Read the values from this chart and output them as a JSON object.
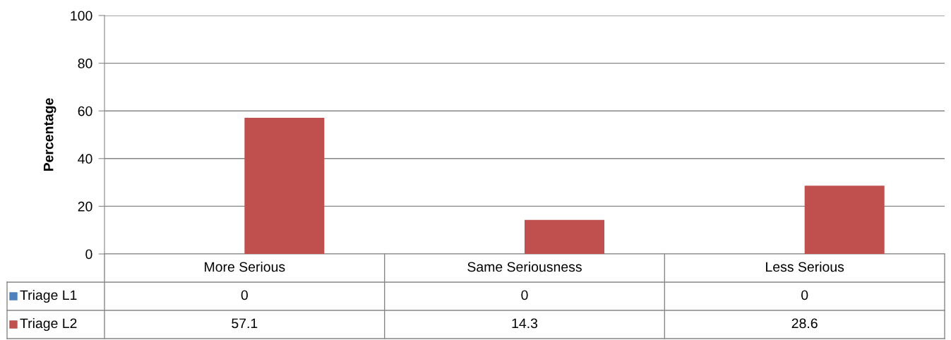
{
  "chart_data": {
    "type": "bar",
    "ylabel": "Percentage",
    "categories": [
      "More Serious",
      "Same Seriousness",
      "Less Serious"
    ],
    "series": [
      {
        "name": "Triage L1",
        "color": "#4f81bd",
        "values": [
          0,
          0,
          0
        ]
      },
      {
        "name": "Triage L2",
        "color": "#c0504d",
        "values": [
          57.1,
          14.3,
          28.6
        ]
      }
    ],
    "ylim": [
      0,
      100
    ],
    "yticks": [
      0,
      20,
      40,
      60,
      80,
      100
    ],
    "grid": "y",
    "legend": "bottom",
    "data_labels": true
  }
}
